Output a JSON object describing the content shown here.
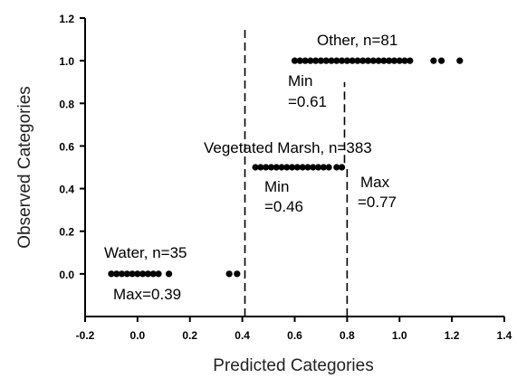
{
  "chart_data": {
    "type": "scatter",
    "title": "",
    "xlabel": "Predicted Categories",
    "ylabel": "Observed Categories",
    "xlim": [
      -0.2,
      1.4
    ],
    "ylim": [
      -0.2,
      1.2
    ],
    "xticks": [
      "-0.2",
      "0.0",
      "0.2",
      "0.4",
      "0.6",
      "0.8",
      "1.0",
      "1.2",
      "1.4"
    ],
    "xtick_values": [
      -0.2,
      0.0,
      0.2,
      0.4,
      0.6,
      0.8,
      1.0,
      1.2,
      1.4
    ],
    "yticks": [
      "0.0",
      "0.2",
      "0.4",
      "0.6",
      "0.8",
      "1.0",
      "1.2"
    ],
    "ytick_values": [
      0.0,
      0.2,
      0.4,
      0.6,
      0.8,
      1.0,
      1.2
    ],
    "grid": false,
    "series": [
      {
        "label": "Water, n=35",
        "y": 0.0,
        "x": [
          -0.1,
          -0.08,
          -0.06,
          -0.04,
          -0.02,
          0.0,
          0.02,
          0.04,
          0.06,
          0.08,
          0.12,
          0.35,
          0.38
        ]
      },
      {
        "label": "Vegetated Marsh, n=383",
        "y": 0.5,
        "x": [
          0.45,
          0.47,
          0.49,
          0.51,
          0.53,
          0.55,
          0.57,
          0.59,
          0.61,
          0.63,
          0.65,
          0.67,
          0.69,
          0.71,
          0.73,
          0.76,
          0.78
        ]
      },
      {
        "label": "Other, n=81",
        "y": 1.0,
        "x": [
          0.6,
          0.62,
          0.64,
          0.66,
          0.68,
          0.7,
          0.72,
          0.74,
          0.76,
          0.78,
          0.8,
          0.82,
          0.84,
          0.86,
          0.88,
          0.9,
          0.92,
          0.94,
          0.96,
          0.98,
          1.0,
          1.02,
          1.04,
          1.13,
          1.16,
          1.23
        ]
      }
    ],
    "vertical_lines": [
      {
        "x": 0.41,
        "y_from": -0.2,
        "y_to": 1.15
      },
      {
        "x": 0.8,
        "y_from": -0.2,
        "y_to": 0.5
      },
      {
        "x": 0.79,
        "y_from": 0.52,
        "y_to": 0.9
      }
    ],
    "annotations": [
      {
        "id": "water-label",
        "text": "Water, n=35"
      },
      {
        "id": "water-max",
        "text": "Max=0.39"
      },
      {
        "id": "marsh-label",
        "text": "Vegetated Marsh, n=383"
      },
      {
        "id": "marsh-min-1",
        "text": "Min"
      },
      {
        "id": "marsh-min-2",
        "text": "=0.46"
      },
      {
        "id": "marsh-max-1",
        "text": "Max"
      },
      {
        "id": "marsh-max-2",
        "text": "=0.77"
      },
      {
        "id": "other-label",
        "text": "Other, n=81"
      },
      {
        "id": "other-min-1",
        "text": "Min"
      },
      {
        "id": "other-min-2",
        "text": "=0.61"
      }
    ]
  }
}
